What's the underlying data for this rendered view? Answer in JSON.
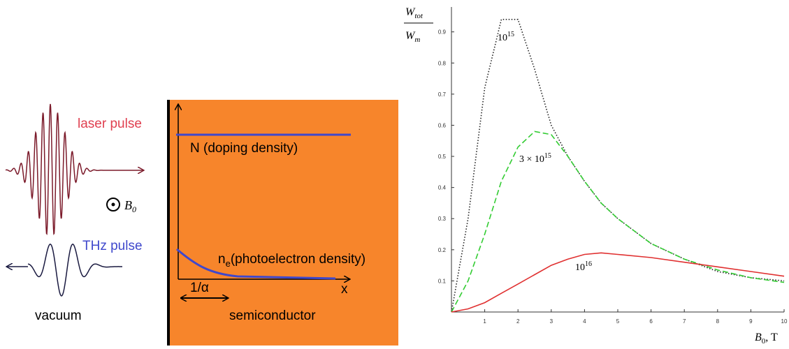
{
  "diagram": {
    "laser_label": "laser pulse",
    "field_symbol": "B",
    "field_subscript": "0",
    "thz_label": "THz pulse",
    "vacuum_label": "vacuum",
    "doping_label": "N (doping density)",
    "ne_symbol": "n",
    "ne_subscript": "e",
    "ne_label": "(photoelectron  density)",
    "depth_label": "1/α",
    "x_label": "x",
    "material_label": "semiconductor"
  },
  "chart_data": {
    "type": "line",
    "ylabel_top": [
      "W",
      "tot"
    ],
    "ylabel_bottom": [
      "W",
      "m"
    ],
    "xlabel": [
      "B",
      "0",
      ", T"
    ],
    "x": [
      0,
      0.5,
      1,
      1.5,
      2,
      2.5,
      3,
      3.5,
      4,
      4.5,
      5,
      6,
      7,
      8,
      9,
      10
    ],
    "series": [
      {
        "color": "#222222",
        "style": "dotted",
        "values": [
          0,
          0.3,
          0.72,
          0.94,
          0.94,
          0.78,
          0.6,
          0.5,
          0.42,
          0.35,
          0.3,
          0.22,
          0.17,
          0.13,
          0.11,
          0.1
        ]
      },
      {
        "color": "#33cc33",
        "style": "dashed",
        "values": [
          0,
          0.1,
          0.25,
          0.42,
          0.53,
          0.58,
          0.57,
          0.5,
          0.42,
          0.35,
          0.3,
          0.22,
          0.17,
          0.135,
          0.11,
          0.095
        ]
      },
      {
        "color": "#e03030",
        "style": "solid",
        "values": [
          0,
          0.01,
          0.03,
          0.06,
          0.09,
          0.12,
          0.15,
          0.17,
          0.185,
          0.19,
          0.185,
          0.175,
          0.16,
          0.145,
          0.13,
          0.115
        ]
      }
    ],
    "annotations": [
      {
        "base": "10",
        "sup": "15"
      },
      {
        "base": "3 × 10",
        "sup": "15"
      },
      {
        "base": "10",
        "sup": "16"
      }
    ],
    "xlim": [
      0,
      10
    ],
    "ylim": [
      0,
      0.98
    ],
    "xticks": [
      1,
      2,
      3,
      4,
      5,
      6,
      7,
      8,
      9,
      10
    ],
    "yticks": [
      0.1,
      0.2,
      0.3,
      0.4,
      0.5,
      0.6,
      0.7,
      0.8,
      0.9
    ]
  }
}
